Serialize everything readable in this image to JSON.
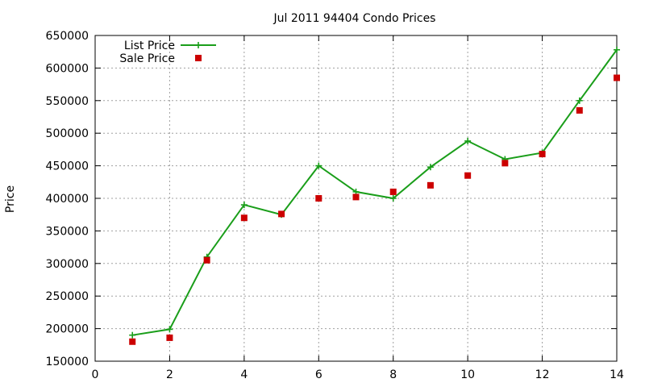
{
  "chart_data": {
    "type": "line",
    "title": "Jul 2011 94404 Condo Prices",
    "xlabel": "",
    "ylabel": "Price",
    "xlim": [
      0,
      14
    ],
    "ylim": [
      150000,
      650000
    ],
    "xticks": [
      0,
      2,
      4,
      6,
      8,
      10,
      12,
      14
    ],
    "yticks": [
      150000,
      200000,
      250000,
      300000,
      350000,
      400000,
      450000,
      500000,
      550000,
      600000,
      650000
    ],
    "grid": true,
    "legend_position": "top-left",
    "series": [
      {
        "name": "List Price",
        "style": "line-with-plus-markers",
        "color": "#1a9e1a",
        "x": [
          1,
          2,
          3,
          4,
          5,
          6,
          7,
          8,
          9,
          10,
          11,
          12,
          13,
          14
        ],
        "y": [
          190000,
          199000,
          310000,
          390000,
          375000,
          450000,
          410000,
          400000,
          448000,
          488000,
          460000,
          470000,
          550000,
          628000
        ]
      },
      {
        "name": "Sale Price",
        "style": "square-markers",
        "color": "#cc0000",
        "x": [
          1,
          2,
          3,
          4,
          5,
          6,
          7,
          8,
          9,
          10,
          11,
          12,
          13,
          14
        ],
        "y": [
          180000,
          186000,
          305000,
          370000,
          376000,
          400000,
          402000,
          410000,
          420000,
          435000,
          454000,
          468000,
          535000,
          585000
        ]
      }
    ]
  }
}
